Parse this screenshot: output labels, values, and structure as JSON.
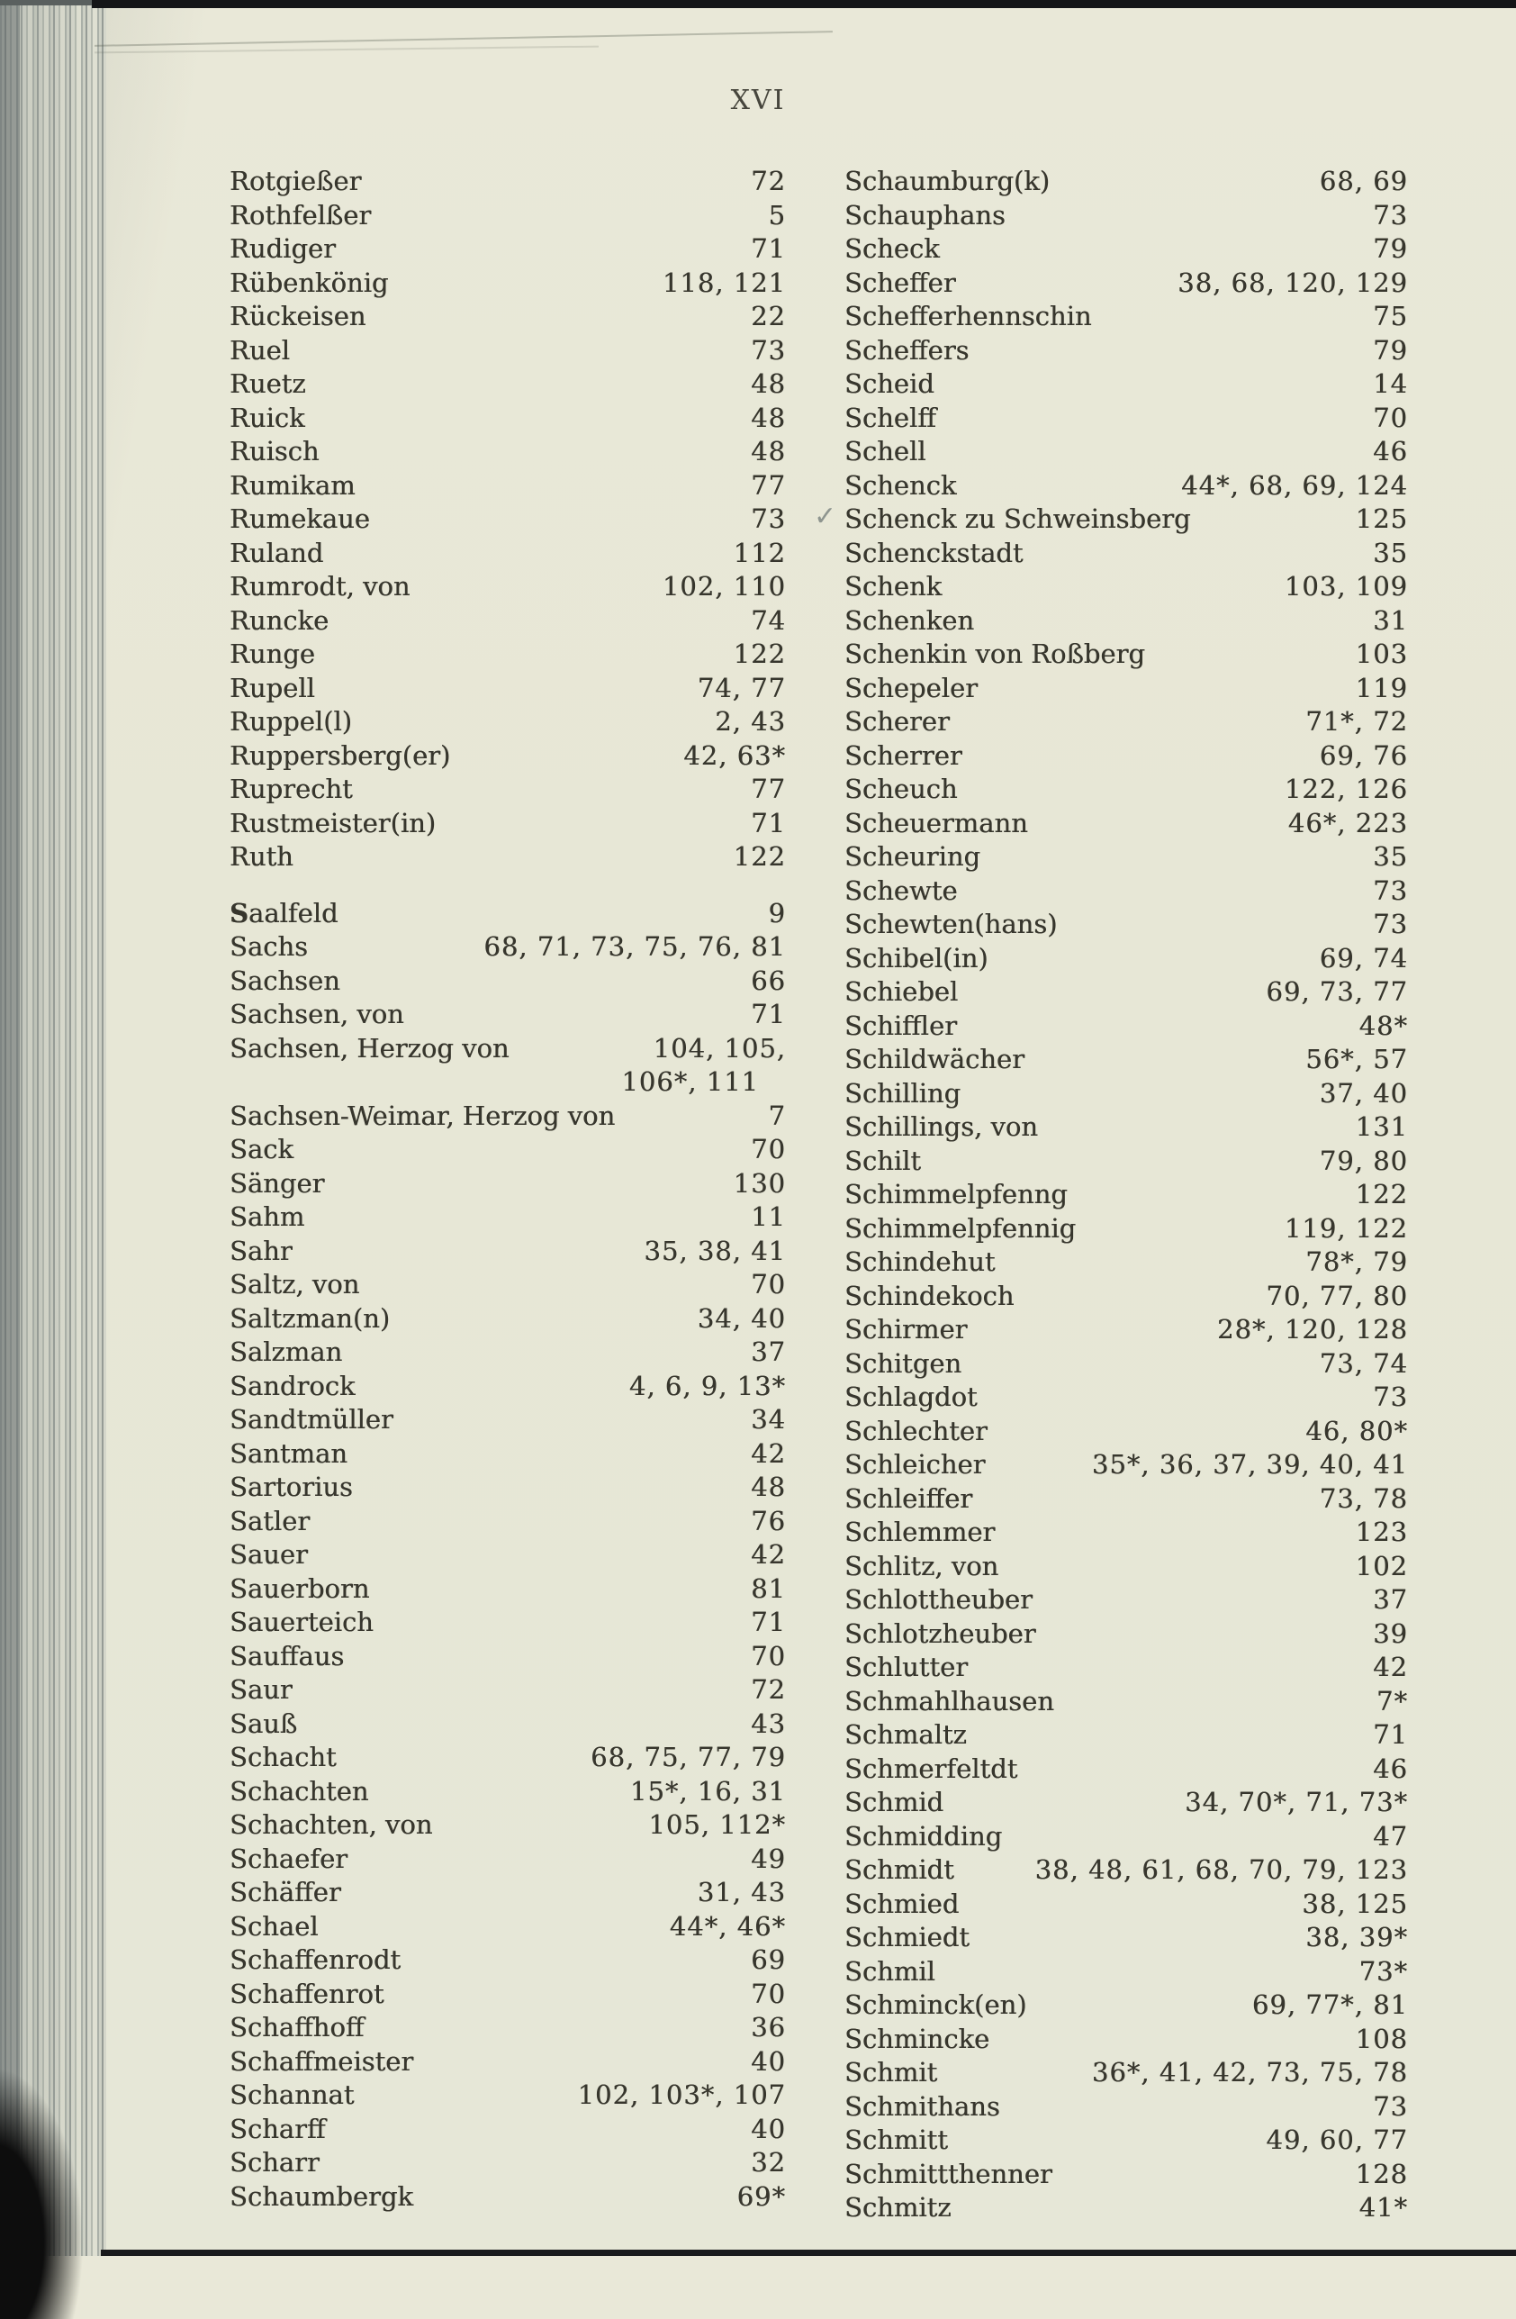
{
  "page": {
    "header": "XVI"
  },
  "colors": {
    "paper": "#e9e8d8",
    "ink": "#37362d",
    "edge_gray": "#a8aea8",
    "bar_black": "#141517"
  },
  "index": {
    "left": [
      {
        "name": "Rotgießer",
        "pages": "72"
      },
      {
        "name": "Rothfelßer",
        "pages": "5"
      },
      {
        "name": "Rudiger",
        "pages": "71"
      },
      {
        "name": "Rübenkönig",
        "pages": "118, 121"
      },
      {
        "name": "Rückeisen",
        "pages": "22"
      },
      {
        "name": "Ruel",
        "pages": "73"
      },
      {
        "name": "Ruetz",
        "pages": "48"
      },
      {
        "name": "Ruick",
        "pages": "48"
      },
      {
        "name": "Ruisch",
        "pages": "48"
      },
      {
        "name": "Rumikam",
        "pages": "77"
      },
      {
        "name": "Rumekaue",
        "pages": "73"
      },
      {
        "name": "Ruland",
        "pages": "112"
      },
      {
        "name": "Rumrodt, von",
        "pages": "102, 110"
      },
      {
        "name": "Runcke",
        "pages": "74"
      },
      {
        "name": "Runge",
        "pages": "122"
      },
      {
        "name": "Rupell",
        "pages": "74, 77"
      },
      {
        "name": "Ruppel(l)",
        "pages": "2, 43"
      },
      {
        "name": "Ruppersberg(er)",
        "pages": "42, 63*"
      },
      {
        "name": "Ruprecht",
        "pages": "77"
      },
      {
        "name": "Rustmeister(in)",
        "pages": "71"
      },
      {
        "name": "Ruth",
        "pages": "122"
      },
      {
        "name": "Saalfeld",
        "pages": "9",
        "gapBefore": true,
        "boldInitial": true
      },
      {
        "name": "Sachs",
        "pages": "68, 71, 73, 75, 76, 81"
      },
      {
        "name": "Sachsen",
        "pages": "66"
      },
      {
        "name": "Sachsen, von",
        "pages": "71"
      },
      {
        "name": "Sachsen, Herzog von",
        "pages": "104, 105,",
        "continuation": "106*, 111"
      },
      {
        "name": "Sachsen-Weimar, Herzog von",
        "pages": "7"
      },
      {
        "name": "Sack",
        "pages": "70"
      },
      {
        "name": "Sänger",
        "pages": "130"
      },
      {
        "name": "Sahm",
        "pages": "11"
      },
      {
        "name": "Sahr",
        "pages": "35, 38, 41"
      },
      {
        "name": "Saltz, von",
        "pages": "70"
      },
      {
        "name": "Saltzman(n)",
        "pages": "34, 40"
      },
      {
        "name": "Salzman",
        "pages": "37"
      },
      {
        "name": "Sandrock",
        "pages": "4, 6, 9, 13*"
      },
      {
        "name": "Sandtmüller",
        "pages": "34"
      },
      {
        "name": "Santman",
        "pages": "42"
      },
      {
        "name": "Sartorius",
        "pages": "48"
      },
      {
        "name": "Satler",
        "pages": "76"
      },
      {
        "name": "Sauer",
        "pages": "42"
      },
      {
        "name": "Sauerborn",
        "pages": "81"
      },
      {
        "name": "Sauerteich",
        "pages": "71"
      },
      {
        "name": "Sauffaus",
        "pages": "70"
      },
      {
        "name": "Saur",
        "pages": "72"
      },
      {
        "name": "Sauß",
        "pages": "43"
      },
      {
        "name": "Schacht",
        "pages": "68, 75, 77, 79"
      },
      {
        "name": "Schachten",
        "pages": "15*, 16, 31"
      },
      {
        "name": "Schachten, von",
        "pages": "105, 112*"
      },
      {
        "name": "Schaefer",
        "pages": "49"
      },
      {
        "name": "Schäffer",
        "pages": "31, 43"
      },
      {
        "name": "Schael",
        "pages": "44*, 46*"
      },
      {
        "name": "Schaffenrodt",
        "pages": "69"
      },
      {
        "name": "Schaffenrot",
        "pages": "70"
      },
      {
        "name": "Schaffhoff",
        "pages": "36"
      },
      {
        "name": "Schaffmeister",
        "pages": "40"
      },
      {
        "name": "Schannat",
        "pages": "102, 103*, 107"
      },
      {
        "name": "Scharff",
        "pages": "40"
      },
      {
        "name": "Scharr",
        "pages": "32"
      },
      {
        "name": "Schaumbergk",
        "pages": "69*"
      }
    ],
    "right": [
      {
        "name": "Schaumburg(k)",
        "pages": "68, 69"
      },
      {
        "name": "Schauphans",
        "pages": "73"
      },
      {
        "name": "Scheck",
        "pages": "79"
      },
      {
        "name": "Scheffer",
        "pages": "38, 68, 120, 129"
      },
      {
        "name": "Schefferhennschin",
        "pages": "75"
      },
      {
        "name": "Scheffers",
        "pages": "79"
      },
      {
        "name": "Scheid",
        "pages": "14"
      },
      {
        "name": "Schelff",
        "pages": "70"
      },
      {
        "name": "Schell",
        "pages": "46"
      },
      {
        "name": "Schenck",
        "pages": "44*, 68, 69, 124"
      },
      {
        "name": "Schenck zu Schweinsberg",
        "pages": "125",
        "annotation": "✓"
      },
      {
        "name": "Schenckstadt",
        "pages": "35"
      },
      {
        "name": "Schenk",
        "pages": "103, 109"
      },
      {
        "name": "Schenken",
        "pages": "31"
      },
      {
        "name": "Schenkin von Roßberg",
        "pages": "103"
      },
      {
        "name": "Schepeler",
        "pages": "119"
      },
      {
        "name": "Scherer",
        "pages": "71*, 72"
      },
      {
        "name": "Scherrer",
        "pages": "69, 76"
      },
      {
        "name": "Scheuch",
        "pages": "122, 126"
      },
      {
        "name": "Scheuermann",
        "pages": "46*, 223"
      },
      {
        "name": "Scheuring",
        "pages": "35"
      },
      {
        "name": "Schewte",
        "pages": "73"
      },
      {
        "name": "Schewten(hans)",
        "pages": "73"
      },
      {
        "name": "Schibel(in)",
        "pages": "69, 74"
      },
      {
        "name": "Schiebel",
        "pages": "69, 73, 77"
      },
      {
        "name": "Schiffler",
        "pages": "48*"
      },
      {
        "name": "Schildwächer",
        "pages": "56*, 57"
      },
      {
        "name": "Schilling",
        "pages": "37, 40"
      },
      {
        "name": "Schillings, von",
        "pages": "131"
      },
      {
        "name": "Schilt",
        "pages": "79, 80"
      },
      {
        "name": "Schimmelpfenng",
        "pages": "122"
      },
      {
        "name": "Schimmelpfennig",
        "pages": "119, 122"
      },
      {
        "name": "Schindehut",
        "pages": "78*, 79"
      },
      {
        "name": "Schindekoch",
        "pages": "70, 77, 80"
      },
      {
        "name": "Schirmer",
        "pages": "28*, 120, 128"
      },
      {
        "name": "Schitgen",
        "pages": "73, 74"
      },
      {
        "name": "Schlagdot",
        "pages": "73"
      },
      {
        "name": "Schlechter",
        "pages": "46, 80*"
      },
      {
        "name": "Schleicher",
        "pages": "35*, 36, 37, 39, 40, 41"
      },
      {
        "name": "Schleiffer",
        "pages": "73, 78"
      },
      {
        "name": "Schlemmer",
        "pages": "123"
      },
      {
        "name": "Schlitz, von",
        "pages": "102"
      },
      {
        "name": "Schlottheuber",
        "pages": "37"
      },
      {
        "name": "Schlotzheuber",
        "pages": "39"
      },
      {
        "name": "Schlutter",
        "pages": "42"
      },
      {
        "name": "Schmahlhausen",
        "pages": "7*"
      },
      {
        "name": "Schmaltz",
        "pages": "71"
      },
      {
        "name": "Schmerfeltdt",
        "pages": "46"
      },
      {
        "name": "Schmid",
        "pages": "34, 70*, 71, 73*"
      },
      {
        "name": "Schmidding",
        "pages": "47"
      },
      {
        "name": "Schmidt",
        "pages": "38, 48, 61, 68, 70, 79, 123"
      },
      {
        "name": "Schmied",
        "pages": "38, 125"
      },
      {
        "name": "Schmiedt",
        "pages": "38, 39*"
      },
      {
        "name": "Schmil",
        "pages": "73*"
      },
      {
        "name": "Schminck(en)",
        "pages": "69, 77*, 81"
      },
      {
        "name": "Schmincke",
        "pages": "108"
      },
      {
        "name": "Schmit",
        "pages": "36*, 41, 42, 73, 75, 78"
      },
      {
        "name": "Schmithans",
        "pages": "73"
      },
      {
        "name": "Schmitt",
        "pages": "49, 60, 77"
      },
      {
        "name": "Schmittthenner",
        "pages": "128"
      },
      {
        "name": "Schmitz",
        "pages": "41*"
      }
    ]
  }
}
